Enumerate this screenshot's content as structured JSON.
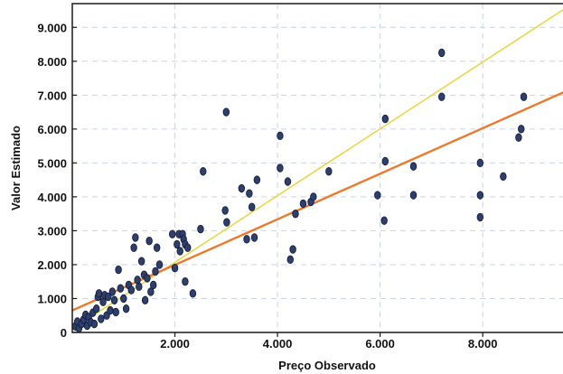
{
  "chart_data": {
    "type": "scatter",
    "title": "",
    "xlabel": "Preço Observado",
    "ylabel": "Valor Estimado",
    "xlim": [
      0,
      9600
    ],
    "ylim": [
      0,
      9700
    ],
    "x_ticks": [
      2000,
      4000,
      6000,
      8000
    ],
    "x_tick_labels": [
      "2.000",
      "4.000",
      "6.000",
      "8.000"
    ],
    "y_ticks": [
      0,
      1000,
      2000,
      3000,
      4000,
      5000,
      6000,
      7000,
      8000,
      9000
    ],
    "y_tick_labels": [
      "0",
      "1.000",
      "2.000",
      "3.000",
      "4.000",
      "5.000",
      "6.000",
      "7.000",
      "8.000",
      "9.000"
    ],
    "grid": true,
    "points": [
      [
        60,
        180
      ],
      [
        100,
        320
      ],
      [
        130,
        120
      ],
      [
        180,
        250
      ],
      [
        220,
        380
      ],
      [
        260,
        520
      ],
      [
        290,
        200
      ],
      [
        320,
        450
      ],
      [
        360,
        300
      ],
      [
        400,
        580
      ],
      [
        430,
        250
      ],
      [
        470,
        700
      ],
      [
        500,
        1050
      ],
      [
        520,
        1150
      ],
      [
        560,
        400
      ],
      [
        600,
        900
      ],
      [
        630,
        1100
      ],
      [
        670,
        500
      ],
      [
        700,
        1050
      ],
      [
        740,
        650
      ],
      [
        780,
        1200
      ],
      [
        820,
        950
      ],
      [
        850,
        600
      ],
      [
        900,
        1850
      ],
      [
        940,
        1300
      ],
      [
        1000,
        1000
      ],
      [
        1050,
        700
      ],
      [
        1100,
        1400
      ],
      [
        1150,
        1250
      ],
      [
        1200,
        2500
      ],
      [
        1230,
        2800
      ],
      [
        1270,
        1550
      ],
      [
        1300,
        1350
      ],
      [
        1350,
        2100
      ],
      [
        1400,
        1700
      ],
      [
        1420,
        950
      ],
      [
        1460,
        1600
      ],
      [
        1500,
        2700
      ],
      [
        1530,
        1200
      ],
      [
        1580,
        1400
      ],
      [
        1620,
        1800
      ],
      [
        1650,
        2500
      ],
      [
        1700,
        2000
      ],
      [
        1950,
        2900
      ],
      [
        2000,
        1900
      ],
      [
        2040,
        2600
      ],
      [
        2080,
        2900
      ],
      [
        2100,
        2400
      ],
      [
        2150,
        2900
      ],
      [
        2170,
        2750
      ],
      [
        2200,
        2600
      ],
      [
        2250,
        2500
      ],
      [
        2200,
        1500
      ],
      [
        2350,
        1150
      ],
      [
        2550,
        4750
      ],
      [
        2500,
        3050
      ],
      [
        2980,
        3600
      ],
      [
        3000,
        6500
      ],
      [
        3010,
        3250
      ],
      [
        3300,
        4250
      ],
      [
        3400,
        2750
      ],
      [
        3450,
        4100
      ],
      [
        3500,
        3700
      ],
      [
        3550,
        2800
      ],
      [
        3600,
        4500
      ],
      [
        4050,
        5800
      ],
      [
        4050,
        4850
      ],
      [
        4200,
        4450
      ],
      [
        4250,
        2150
      ],
      [
        4300,
        2450
      ],
      [
        4350,
        3500
      ],
      [
        4500,
        3800
      ],
      [
        4650,
        3850
      ],
      [
        4700,
        4000
      ],
      [
        5000,
        4750
      ],
      [
        5950,
        4050
      ],
      [
        6080,
        3300
      ],
      [
        6100,
        6300
      ],
      [
        6100,
        5050
      ],
      [
        6650,
        4900
      ],
      [
        6650,
        4050
      ],
      [
        7200,
        8250
      ],
      [
        7200,
        6950
      ],
      [
        7950,
        5000
      ],
      [
        7950,
        4050
      ],
      [
        7950,
        3400
      ],
      [
        8400,
        4600
      ],
      [
        8700,
        5750
      ],
      [
        8750,
        6000
      ],
      [
        8800,
        6950
      ]
    ],
    "point_color": "#2e3f6e",
    "lines": [
      {
        "x": [
          0,
          9600
        ],
        "y": [
          100,
          9550
        ],
        "color": "#e8d84a"
      },
      {
        "x": [
          0,
          9600
        ],
        "y": [
          650,
          7100
        ],
        "color": "#ec7a2c"
      }
    ]
  }
}
